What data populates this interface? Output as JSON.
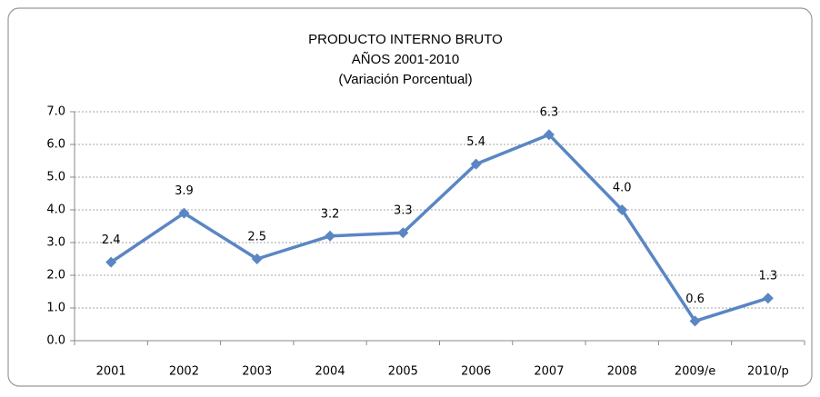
{
  "chart_data": {
    "type": "line",
    "title": "PRODUCTO INTERNO BRUTO",
    "subtitle": [
      "AÑOS 2001-2010",
      "(Variación Porcentual)"
    ],
    "categories": [
      "2001",
      "2002",
      "2003",
      "2004",
      "2005",
      "2006",
      "2007",
      "2008",
      "2009/e",
      "2010/p"
    ],
    "values": [
      2.4,
      3.9,
      2.5,
      3.2,
      3.3,
      5.4,
      6.3,
      4.0,
      0.6,
      1.3
    ],
    "value_labels": [
      "2.4",
      "3.9",
      "2.5",
      "3.2",
      "3.3",
      "5.4",
      "6.3",
      "4.0",
      "0.6",
      "1.3"
    ],
    "color": "#5a86c3",
    "ylim": [
      0,
      7
    ],
    "yticks": [
      {
        "value": 0,
        "label": "0.0"
      },
      {
        "value": 1,
        "label": "1.0"
      },
      {
        "value": 2,
        "label": "2.0"
      },
      {
        "value": 3,
        "label": "3.0"
      },
      {
        "value": 4,
        "label": "4.0"
      },
      {
        "value": 5,
        "label": "5.0"
      },
      {
        "value": 6,
        "label": "6.0"
      },
      {
        "value": 7,
        "label": "7.0"
      }
    ],
    "grid": true
  }
}
